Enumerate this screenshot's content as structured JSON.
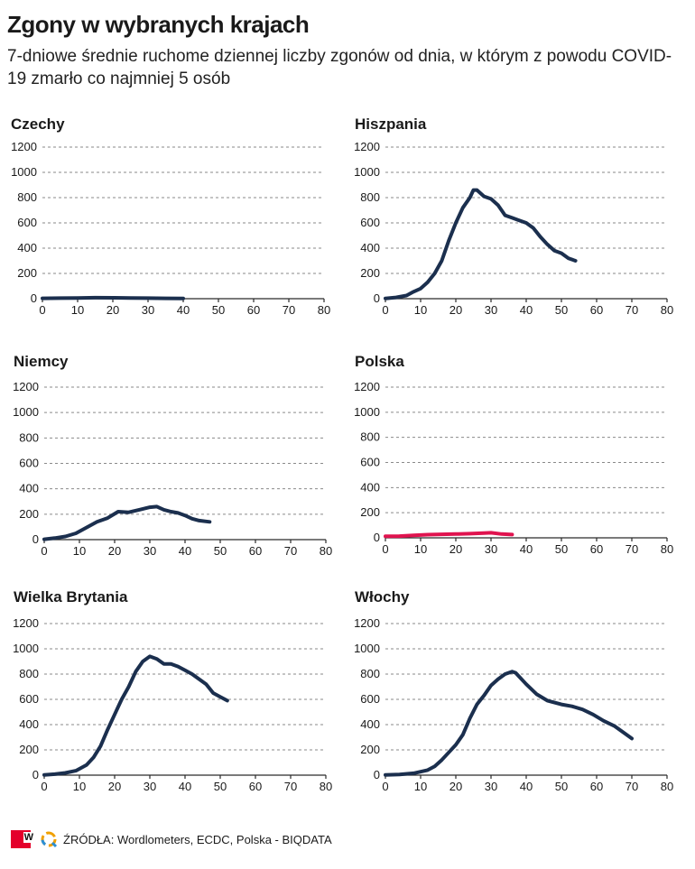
{
  "header": {
    "title": "Zgony w wybranych krajach",
    "subtitle": "7-dniowe średnie ruchome dziennej liczby zgonów od dnia, w którym z powodu COVID-19 zmarło co najmniej 5 osób"
  },
  "footer": {
    "source": "ŹRÓDŁA: Wordlometers, ECDC, Polska - BIQDATA",
    "logo_letter": "W"
  },
  "colors": {
    "default_line": "#1b2f4e",
    "highlight_line": "#e0134f",
    "grid": "#8a8a8a"
  },
  "chart_data": [
    {
      "type": "line",
      "title": "Czechy",
      "color": "#1b2f4e",
      "xlim": [
        0,
        80
      ],
      "ylim": [
        0,
        1200
      ],
      "xticks": [
        0,
        10,
        20,
        30,
        40,
        50,
        60,
        70,
        80
      ],
      "yticks": [
        0,
        200,
        400,
        600,
        800,
        1000,
        1200
      ],
      "grid": true,
      "x": [
        0,
        5,
        10,
        15,
        20,
        25,
        30,
        35,
        40
      ],
      "y": [
        3,
        4,
        6,
        8,
        7,
        5,
        4,
        3,
        2
      ]
    },
    {
      "type": "line",
      "title": "Hiszpania",
      "color": "#1b2f4e",
      "xlim": [
        0,
        80
      ],
      "ylim": [
        0,
        1200
      ],
      "xticks": [
        0,
        10,
        20,
        30,
        40,
        50,
        60,
        70,
        80
      ],
      "yticks": [
        0,
        200,
        400,
        600,
        800,
        1000,
        1200
      ],
      "grid": true,
      "x": [
        0,
        3,
        6,
        8,
        10,
        12,
        14,
        16,
        18,
        20,
        22,
        24,
        25,
        26,
        28,
        30,
        32,
        34,
        36,
        38,
        40,
        42,
        44,
        46,
        48,
        50,
        52,
        54
      ],
      "y": [
        2,
        10,
        25,
        55,
        80,
        130,
        200,
        300,
        460,
        600,
        720,
        800,
        860,
        860,
        810,
        790,
        740,
        660,
        640,
        620,
        600,
        560,
        490,
        430,
        380,
        360,
        320,
        300
      ]
    },
    {
      "type": "line",
      "title": "Niemcy",
      "color": "#1b2f4e",
      "xlim": [
        0,
        80
      ],
      "ylim": [
        0,
        1200
      ],
      "xticks": [
        0,
        10,
        20,
        30,
        40,
        50,
        60,
        70,
        80
      ],
      "yticks": [
        0,
        200,
        400,
        600,
        800,
        1000,
        1200
      ],
      "grid": true,
      "x": [
        0,
        3,
        6,
        9,
        12,
        15,
        18,
        21,
        24,
        27,
        30,
        32,
        34,
        36,
        38,
        40,
        42,
        44,
        47
      ],
      "y": [
        3,
        12,
        25,
        50,
        95,
        140,
        170,
        220,
        215,
        235,
        255,
        260,
        235,
        220,
        210,
        190,
        165,
        150,
        140
      ]
    },
    {
      "type": "line",
      "title": "Polska",
      "color": "#e0134f",
      "xlim": [
        0,
        80
      ],
      "ylim": [
        0,
        1200
      ],
      "xticks": [
        0,
        10,
        20,
        30,
        40,
        50,
        60,
        70,
        80
      ],
      "yticks": [
        0,
        200,
        400,
        600,
        800,
        1000,
        1200
      ],
      "grid": true,
      "x": [
        0,
        4,
        8,
        12,
        16,
        20,
        24,
        28,
        30,
        33,
        36
      ],
      "y": [
        12,
        14,
        20,
        25,
        28,
        30,
        33,
        38,
        40,
        30,
        26
      ]
    },
    {
      "type": "line",
      "title": "Wielka Brytania",
      "color": "#1b2f4e",
      "xlim": [
        0,
        80
      ],
      "ylim": [
        0,
        1200
      ],
      "xticks": [
        0,
        10,
        20,
        30,
        40,
        50,
        60,
        70,
        80
      ],
      "yticks": [
        0,
        200,
        400,
        600,
        800,
        1000,
        1200
      ],
      "grid": true,
      "x": [
        0,
        3,
        6,
        9,
        12,
        14,
        16,
        18,
        20,
        22,
        24,
        26,
        28,
        30,
        32,
        34,
        36,
        38,
        40,
        42,
        44,
        46,
        48,
        50,
        52
      ],
      "y": [
        2,
        8,
        18,
        35,
        80,
        140,
        230,
        360,
        480,
        600,
        700,
        820,
        900,
        940,
        920,
        880,
        880,
        860,
        830,
        800,
        760,
        720,
        650,
        620,
        590
      ]
    },
    {
      "type": "line",
      "title": "Włochy",
      "color": "#1b2f4e",
      "xlim": [
        0,
        80
      ],
      "ylim": [
        0,
        1200
      ],
      "xticks": [
        0,
        10,
        20,
        30,
        40,
        50,
        60,
        70,
        80
      ],
      "yticks": [
        0,
        200,
        400,
        600,
        800,
        1000,
        1200
      ],
      "grid": true,
      "x": [
        0,
        4,
        8,
        12,
        14,
        16,
        18,
        20,
        22,
        24,
        26,
        28,
        30,
        32,
        34,
        36,
        37,
        40,
        43,
        46,
        50,
        53,
        56,
        59,
        62,
        65,
        68,
        70
      ],
      "y": [
        2,
        5,
        15,
        40,
        70,
        120,
        180,
        240,
        320,
        450,
        560,
        630,
        710,
        760,
        800,
        820,
        810,
        720,
        640,
        590,
        560,
        545,
        520,
        480,
        430,
        390,
        330,
        290
      ]
    }
  ]
}
